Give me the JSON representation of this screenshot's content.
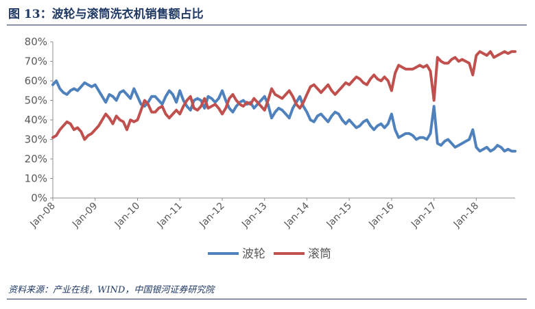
{
  "figure": {
    "title": "图 13：波轮与滚筒洗衣机销售额占比",
    "source": "资料来源：产业在线，WIND，中国银河证券研究院"
  },
  "chart_data": {
    "type": "line",
    "title": "",
    "xlabel": "",
    "ylabel": "",
    "ylim": [
      0,
      80
    ],
    "yticks": [
      "0%",
      "10%",
      "20%",
      "30%",
      "40%",
      "50%",
      "60%",
      "70%",
      "80%"
    ],
    "xticks": [
      "Jan-08",
      "Jan-09",
      "Jan-10",
      "Jan-11",
      "Jan-12",
      "Jan-13",
      "Jan-14",
      "Jan-15",
      "Jan-16",
      "Jan-17",
      "Jan-18"
    ],
    "x_start": "2008-01",
    "x_end": "2018-12",
    "legend_position": "bottom",
    "grid": false,
    "series": [
      {
        "name": "波轮",
        "color": "#4f81bd",
        "values": [
          58,
          60,
          56,
          54,
          53,
          55,
          56,
          55,
          57,
          59,
          58,
          57,
          58,
          55,
          52,
          49,
          53,
          52,
          50,
          54,
          55,
          53,
          51,
          56,
          52,
          48,
          47,
          49,
          52,
          52,
          50,
          48,
          52,
          55,
          53,
          49,
          55,
          50,
          47,
          45,
          50,
          51,
          50,
          46,
          52,
          51,
          49,
          51,
          55,
          50,
          46,
          44,
          47,
          49,
          50,
          48,
          49,
          46,
          48,
          50,
          52,
          48,
          41,
          44,
          46,
          45,
          43,
          41,
          46,
          49,
          52,
          47,
          44,
          40,
          39,
          42,
          43,
          41,
          39,
          42,
          44,
          43,
          40,
          38,
          40,
          38,
          36,
          37,
          39,
          40,
          37,
          35,
          37,
          38,
          36,
          38,
          43,
          35,
          31,
          32,
          33,
          33,
          32,
          30,
          31,
          31,
          30,
          33,
          47,
          28,
          27,
          29,
          30,
          28,
          26,
          27,
          28,
          29,
          30,
          35,
          26,
          24,
          25,
          26,
          24,
          25,
          27,
          26,
          24,
          25,
          24,
          24
        ]
      },
      {
        "name": "滚筒",
        "color": "#c0504d",
        "values": [
          31,
          32,
          35,
          37,
          39,
          38,
          35,
          36,
          34,
          30,
          32,
          33,
          35,
          37,
          40,
          43,
          41,
          38,
          42,
          40,
          39,
          35,
          40,
          39,
          40,
          45,
          50,
          48,
          44,
          44,
          46,
          47,
          43,
          41,
          43,
          45,
          43,
          47,
          50,
          52,
          46,
          45,
          47,
          51,
          46,
          47,
          48,
          46,
          43,
          46,
          51,
          53,
          50,
          48,
          47,
          49,
          48,
          51,
          49,
          47,
          45,
          50,
          56,
          53,
          52,
          51,
          53,
          55,
          52,
          48,
          46,
          49,
          53,
          57,
          58,
          56,
          54,
          56,
          58,
          55,
          53,
          55,
          57,
          59,
          58,
          60,
          62,
          61,
          59,
          58,
          61,
          63,
          61,
          60,
          62,
          60,
          55,
          64,
          68,
          67,
          66,
          66,
          66,
          67,
          68,
          67,
          68,
          65,
          50,
          72,
          70,
          69,
          69,
          71,
          72,
          70,
          71,
          70,
          69,
          63,
          73,
          75,
          74,
          73,
          75,
          72,
          73,
          74,
          75,
          74,
          75,
          75
        ]
      }
    ]
  }
}
